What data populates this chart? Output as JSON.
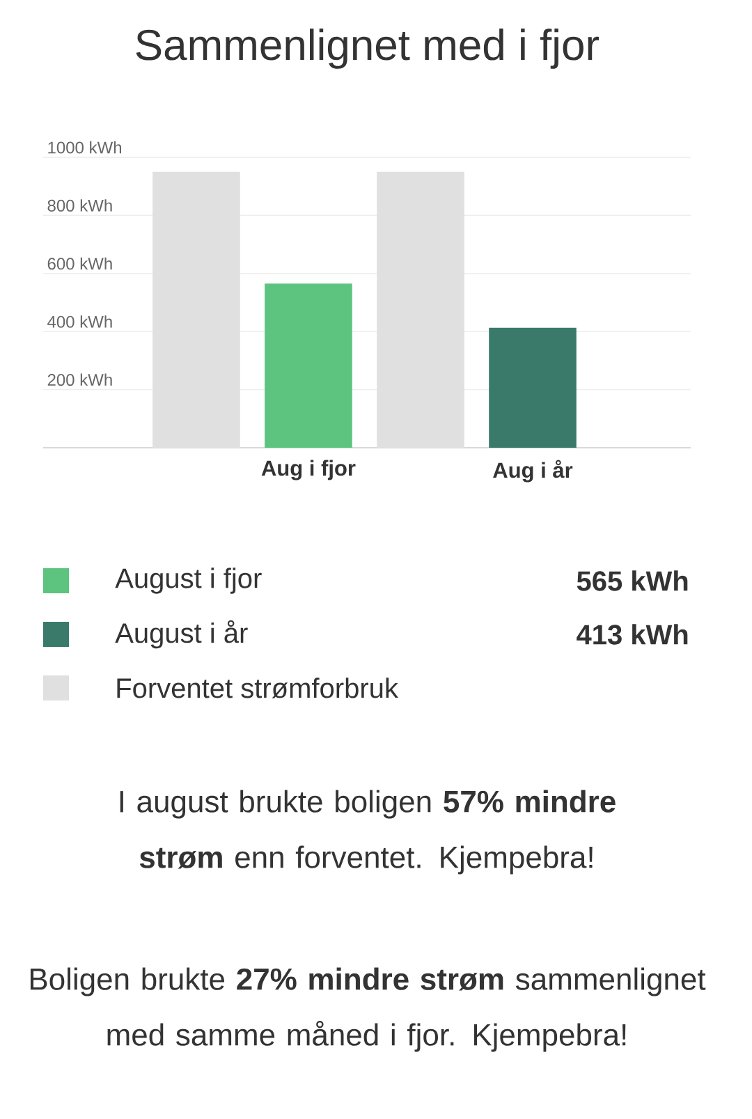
{
  "chart_data": {
    "type": "bar",
    "title": "Sammenlignet med i fjor",
    "categories": [
      "Aug i fjor",
      "Aug i år"
    ],
    "series": [
      {
        "name": "August i fjor",
        "color": "#5cc47f",
        "values": [
          565,
          null
        ]
      },
      {
        "name": "August i år",
        "color": "#3a7a6a",
        "values": [
          null,
          413
        ]
      },
      {
        "name": "Forventet strømforbruk",
        "color": "#e0e0e0",
        "values": [
          950,
          950
        ]
      }
    ],
    "ylim": [
      0,
      1000
    ],
    "yticks": [
      {
        "value": 200,
        "label": "200 kWh"
      },
      {
        "value": 400,
        "label": "400 kWh"
      },
      {
        "value": 600,
        "label": "600 kWh"
      },
      {
        "value": 800,
        "label": "800 kWh"
      },
      {
        "value": 1000,
        "label": "1000 kWh"
      }
    ],
    "grid": "y",
    "legend": "bottom",
    "annotations": [
      "565 kWh",
      "413 kWh",
      "I august brukte boligen **57% mindre strøm** enn forventet. Kjempebra!",
      "Boligen brukte **27% mindre strøm** sammenlignet med samme måned i fjor. Kjempebra!"
    ]
  }
}
